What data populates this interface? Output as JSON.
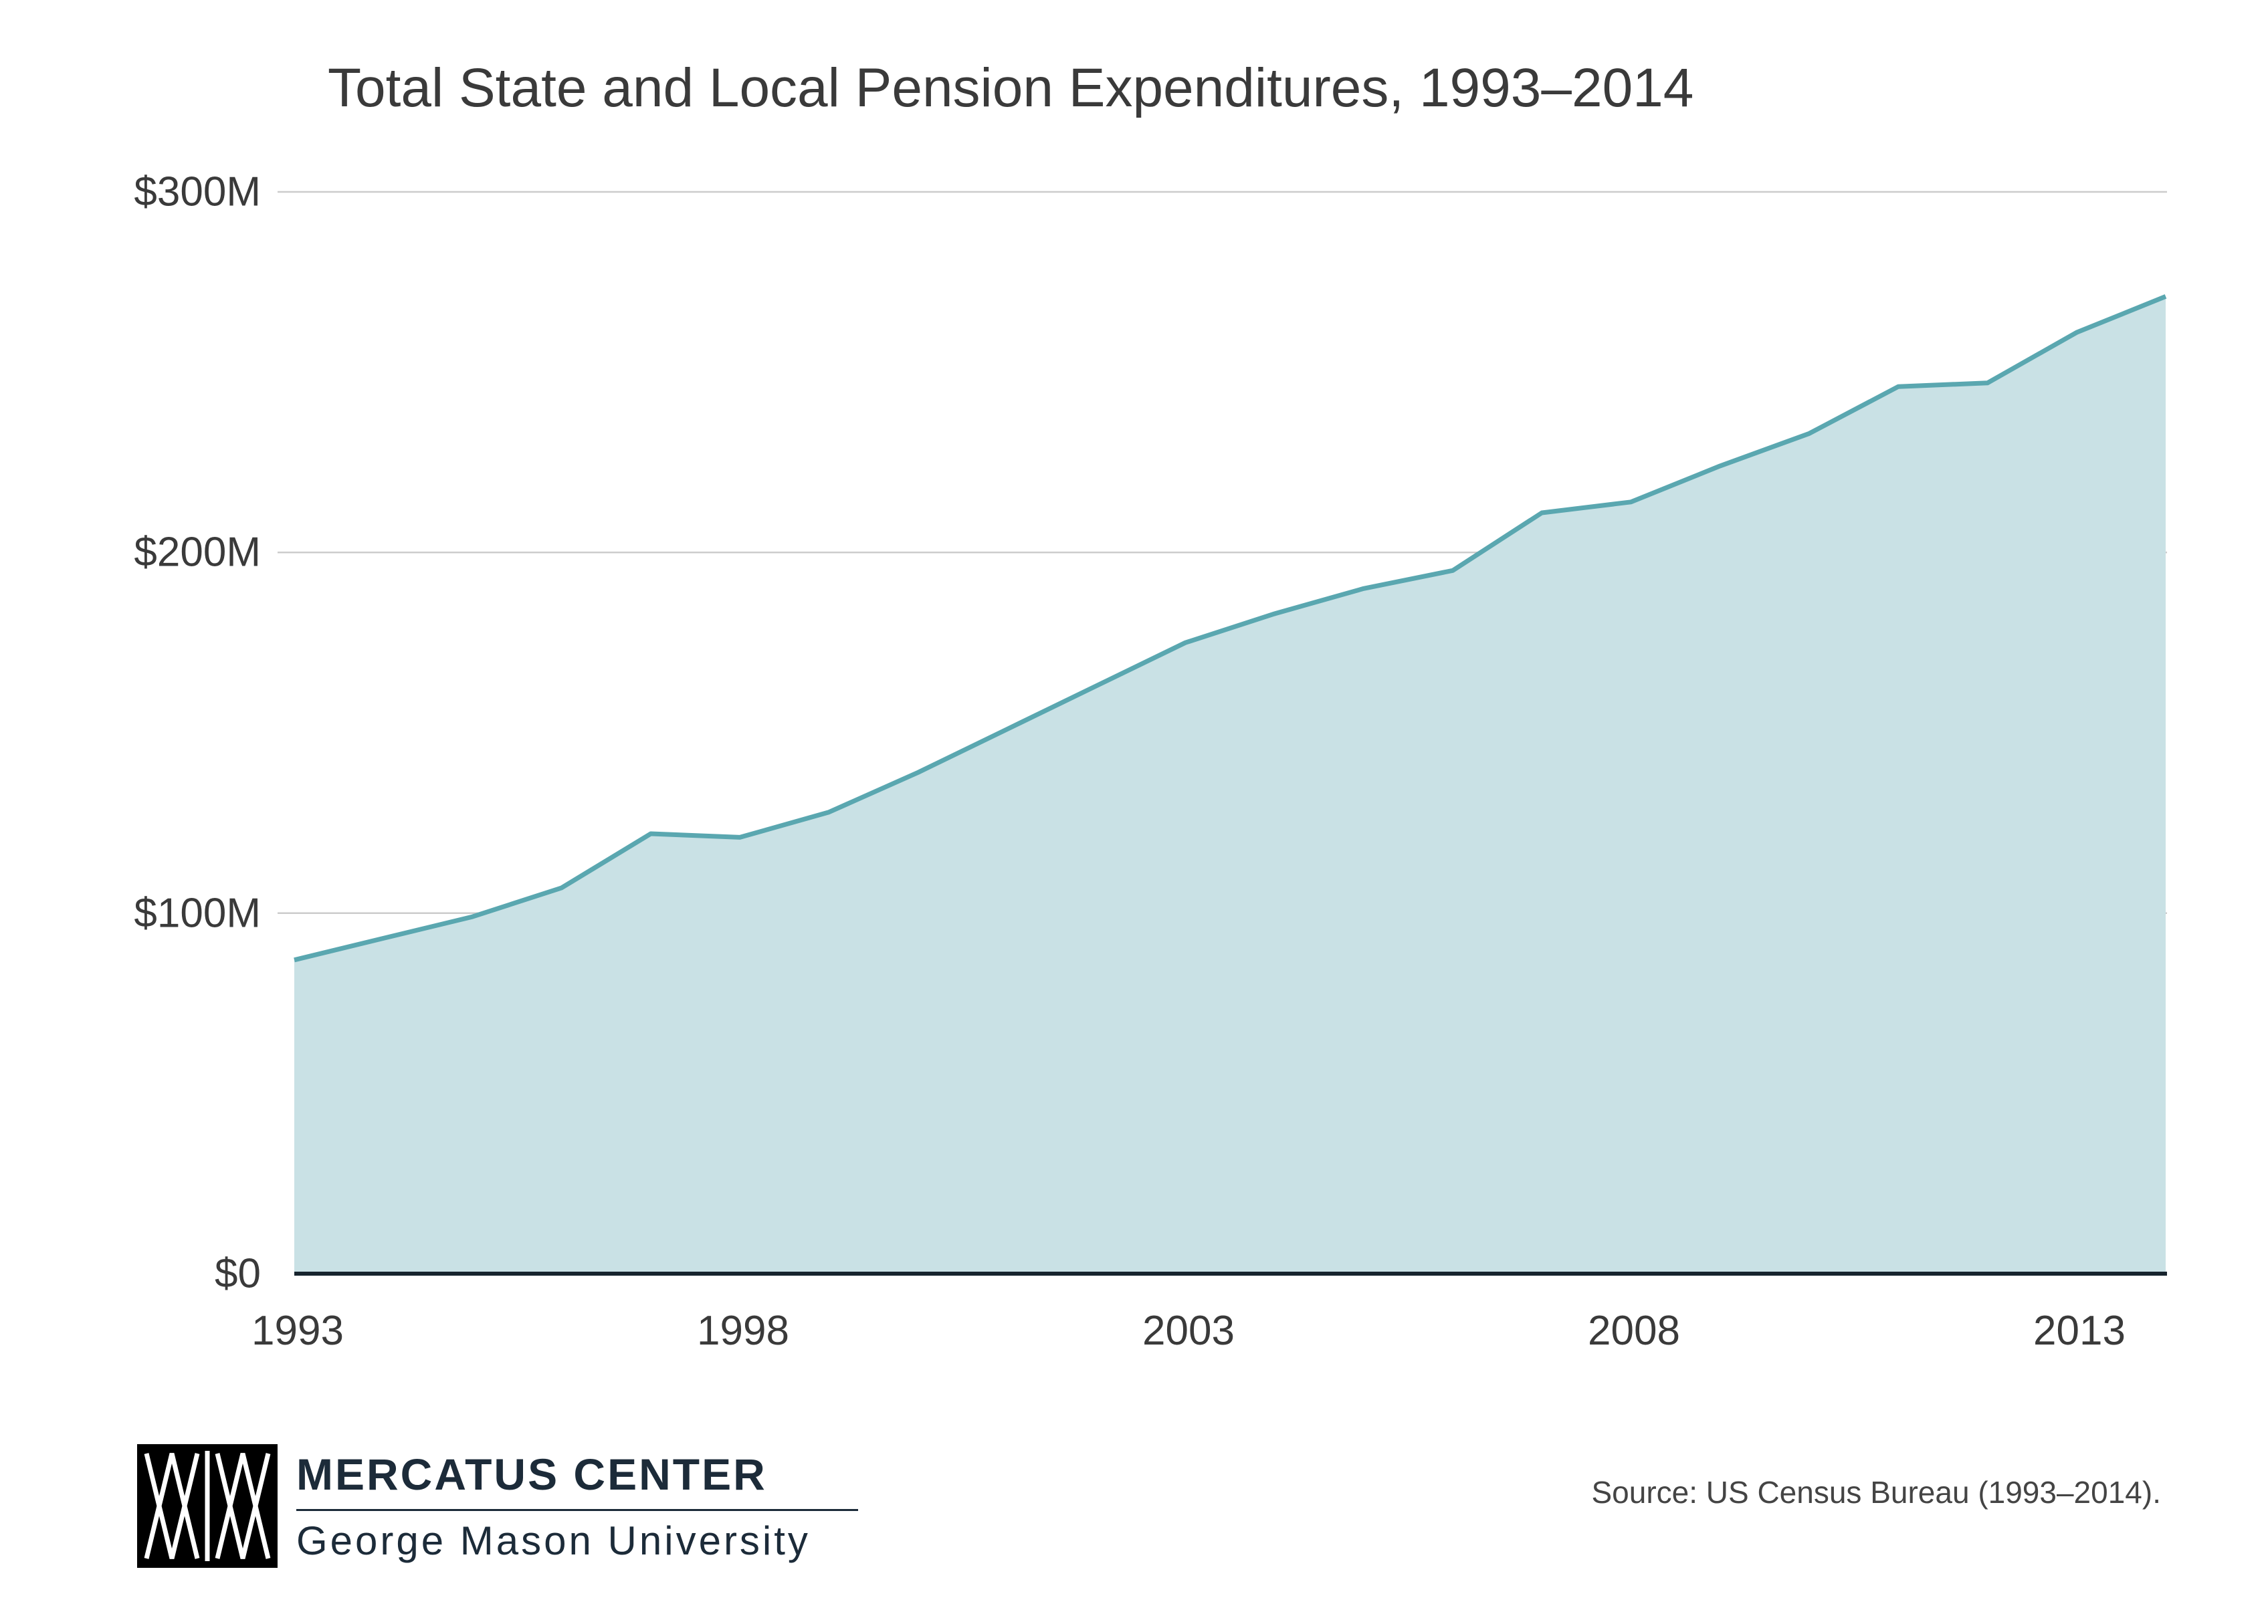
{
  "chart_data": {
    "type": "area",
    "title": "Total State and Local Pension Expenditures, 1993–2014",
    "x": [
      1993,
      1994,
      1995,
      1996,
      1997,
      1998,
      1999,
      2000,
      2001,
      2002,
      2003,
      2004,
      2005,
      2006,
      2007,
      2008,
      2009,
      2010,
      2011,
      2012,
      2013,
      2014
    ],
    "values": [
      87,
      93,
      99,
      107,
      122,
      121,
      128,
      139,
      151,
      163,
      175,
      183,
      190,
      195,
      211,
      214,
      224,
      233,
      246,
      247,
      261,
      271
    ],
    "ylim": [
      0,
      300
    ],
    "unit": "$M",
    "grid": "horizontal",
    "legend": "none",
    "yticks": [
      {
        "value": 300,
        "label": "$300M"
      },
      {
        "value": 200,
        "label": "$200M"
      },
      {
        "value": 100,
        "label": "$100M"
      },
      {
        "value": 0,
        "label": "$0"
      }
    ],
    "xticks": [
      {
        "value": 1993,
        "label": "1993"
      },
      {
        "value": 1998,
        "label": "1998"
      },
      {
        "value": 2003,
        "label": "2003"
      },
      {
        "value": 2008,
        "label": "2008"
      },
      {
        "value": 2013,
        "label": "2013"
      }
    ],
    "colors": {
      "fill": "#c9e1e5",
      "stroke": "#5aa7b0",
      "gridline": "#cccccc",
      "baseline": "#17242e"
    }
  },
  "footer": {
    "logo_title": "MERCATUS CENTER",
    "logo_subtitle": "George Mason University",
    "source": "Source: US Census Bureau (1993–2014)."
  }
}
